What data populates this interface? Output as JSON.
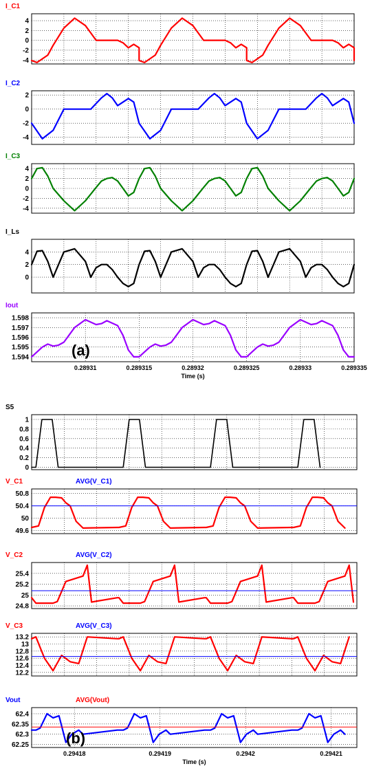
{
  "chart_data": [
    {
      "type": "line",
      "group": "a",
      "series": [
        {
          "name": "I_C1",
          "color": "#ff0000"
        }
      ],
      "ylim": [
        -4.8,
        5.4
      ],
      "yticks": [
        -4,
        -2,
        0,
        2,
        4
      ],
      "xlim": [
        0.289305,
        0.289335
      ],
      "period": 1e-05,
      "x": [
        0.289305,
        0.2893055,
        0.2893065,
        0.289307,
        0.289308,
        0.289309,
        0.28931,
        0.289311,
        0.2893115,
        0.289312,
        0.289313,
        0.2893135,
        0.289314,
        0.2893145,
        0.289315
      ],
      "y": [
        [
          -4.1,
          -4.5,
          -3.0,
          -1.0,
          2.5,
          4.5,
          3.0,
          0.0,
          0.0,
          0.0,
          0.0,
          -0.5,
          -1.5,
          -0.8,
          -1.5
        ]
      ]
    },
    {
      "type": "line",
      "group": "a",
      "series": [
        {
          "name": "I_C2",
          "color": "#0000ff"
        }
      ],
      "ylim": [
        -5.0,
        2.6
      ],
      "yticks": [
        -4,
        -2,
        0,
        2
      ],
      "xlim": [
        0.289305,
        0.289335
      ],
      "period": 1e-05,
      "x": [
        0.289305,
        0.289306,
        0.289307,
        0.289308,
        0.289309,
        0.28931,
        0.2893105,
        0.289311,
        0.2893115,
        0.289312,
        0.2893125,
        0.289313,
        0.289314,
        0.2893145,
        0.289315
      ],
      "y": [
        [
          -2.0,
          -4.2,
          -3.0,
          0.0,
          0.0,
          0.0,
          0.0,
          0.8,
          1.6,
          2.2,
          1.6,
          0.5,
          1.5,
          1.0,
          -2.0
        ]
      ]
    },
    {
      "type": "line",
      "group": "a",
      "series": [
        {
          "name": "I_C3",
          "color": "#008000"
        }
      ],
      "ylim": [
        -5.0,
        5.0
      ],
      "yticks": [
        -4,
        -2,
        0,
        2,
        4
      ],
      "xlim": [
        0.289305,
        0.289335
      ],
      "period": 1e-05,
      "x": [
        0.289305,
        0.2893055,
        0.289306,
        0.2893065,
        0.289307,
        0.289308,
        0.289309,
        0.28931,
        0.289311,
        0.2893115,
        0.289312,
        0.2893125,
        0.289313,
        0.2893135,
        0.289314,
        0.2893145,
        0.289315
      ],
      "y": [
        [
          2.0,
          4.0,
          4.2,
          2.5,
          0.0,
          -2.5,
          -4.5,
          -2.5,
          0.2,
          1.5,
          2.0,
          2.2,
          1.5,
          0.0,
          -1.5,
          -0.8,
          2.0
        ]
      ]
    },
    {
      "type": "line",
      "group": "a",
      "series": [
        {
          "name": "I_Ls",
          "color": "#000000"
        }
      ],
      "ylim": [
        -2.5,
        6.0
      ],
      "yticks": [
        0,
        2,
        4
      ],
      "xlim": [
        0.289305,
        0.289335
      ],
      "period": 1e-05,
      "x": [
        0.289305,
        0.2893055,
        0.289306,
        0.2893065,
        0.289307,
        0.289308,
        0.289309,
        0.28931,
        0.2893105,
        0.289311,
        0.2893115,
        0.289312,
        0.2893125,
        0.289313,
        0.2893135,
        0.289314,
        0.2893145,
        0.289315
      ],
      "y": [
        [
          2.0,
          4.1,
          4.2,
          2.5,
          0.0,
          4.0,
          4.5,
          2.5,
          0.0,
          1.5,
          2.0,
          2.0,
          1.2,
          0.0,
          -1.0,
          -1.5,
          -1.0,
          2.0
        ]
      ]
    },
    {
      "type": "line",
      "group": "a",
      "series": [
        {
          "name": "Iout",
          "color": "#9900ff"
        }
      ],
      "ylim": [
        1.5935,
        1.5985
      ],
      "yticks": [
        1.594,
        1.595,
        1.596,
        1.597,
        1.598
      ],
      "xlim": [
        0.289305,
        0.289335
      ],
      "period": 1e-05,
      "x": [
        0.289305,
        0.289306,
        0.2893065,
        0.289307,
        0.2893075,
        0.289308,
        0.289309,
        0.28931,
        0.289311,
        0.2893115,
        0.289312,
        0.289313,
        0.2893135,
        0.289314,
        0.2893145,
        0.289315
      ],
      "y": [
        [
          1.594,
          1.595,
          1.5953,
          1.5951,
          1.5952,
          1.5955,
          1.597,
          1.5978,
          1.5973,
          1.5974,
          1.5977,
          1.5972,
          1.5962,
          1.5947,
          1.594,
          1.594
        ]
      ],
      "xticks": [
        0.28931,
        0.289315,
        0.28932,
        0.289325,
        0.28933,
        0.289335
      ],
      "xticklabels": [
        "0.28931",
        "0.289315",
        "0.28932",
        "0.289325",
        "0.28933",
        "0.289335"
      ],
      "xlabel": "Time (s)",
      "annotation": "(a)"
    },
    {
      "type": "line",
      "group": "b",
      "series": [
        {
          "name": "S5",
          "color": "#000000"
        }
      ],
      "ylim": [
        -0.05,
        1.1
      ],
      "yticks": [
        0,
        0.2,
        0.4,
        0.6,
        0.8,
        1
      ],
      "yticklabels": [
        "0",
        "0.2",
        "0.4",
        "0.6",
        "0.8",
        "1"
      ],
      "xlim": [
        0.294175,
        0.294213
      ],
      "period": 1.02e-05,
      "x": [
        0.294175,
        0.2941755,
        0.2941762,
        0.2941774,
        0.2941781,
        0.294185
      ],
      "y": [
        [
          0.0,
          0.0,
          1.0,
          1.0,
          0.0,
          0.0
        ]
      ]
    },
    {
      "type": "line",
      "group": "b",
      "series": [
        {
          "name": "V_C1",
          "color": "#ff0000"
        },
        {
          "name": "AVG(V_C1)",
          "color": "#0000ff",
          "constant": 50.4
        }
      ],
      "ylim": [
        49.5,
        50.95
      ],
      "yticks": [
        49.6,
        50,
        50.4,
        50.8
      ],
      "xlim": [
        0.294175,
        0.294213
      ],
      "period": 1.02e-05,
      "x": [
        0.294175,
        0.2941758,
        0.2941765,
        0.2941772,
        0.2941778,
        0.2941785,
        0.294179,
        0.2941795,
        0.2941802,
        0.294181,
        0.294185
      ],
      "y": [
        [
          49.7,
          49.75,
          50.35,
          50.68,
          50.68,
          50.66,
          50.5,
          50.4,
          49.9,
          49.68,
          49.7
        ]
      ]
    },
    {
      "type": "line",
      "group": "b",
      "series": [
        {
          "name": "V_C2",
          "color": "#ff0000"
        },
        {
          "name": "AVG(V_C2)",
          "color": "#0000ff",
          "constant": 25.08
        }
      ],
      "ylim": [
        24.75,
        25.6
      ],
      "yticks": [
        24.8,
        25,
        25.2,
        25.4
      ],
      "xlim": [
        0.294175,
        0.294213
      ],
      "period": 1.02e-05,
      "x": [
        0.294175,
        0.2941755,
        0.2941775,
        0.294178,
        0.294179,
        0.294181,
        0.2941815,
        0.294182,
        0.294185
      ],
      "y": [
        [
          24.95,
          24.85,
          24.85,
          24.88,
          25.25,
          25.35,
          25.55,
          24.87,
          24.95
        ]
      ]
    },
    {
      "type": "line",
      "group": "b",
      "series": [
        {
          "name": "V_C3",
          "color": "#ff0000"
        },
        {
          "name": "AVG(V_C3)",
          "color": "#0000ff",
          "constant": 12.65
        }
      ],
      "ylim": [
        12.1,
        13.3
      ],
      "yticks": [
        12.2,
        12.4,
        12.6,
        12.8,
        13,
        13.2
      ],
      "xlim": [
        0.294175,
        0.294213
      ],
      "period": 1.02e-05,
      "x": [
        0.294175,
        0.2941755,
        0.2941765,
        0.2941775,
        0.2941785,
        0.2941795,
        0.2941805,
        0.2941815,
        0.294185
      ],
      "y": [
        [
          13.15,
          13.2,
          12.6,
          12.25,
          12.68,
          12.5,
          12.45,
          13.2,
          13.15
        ]
      ]
    },
    {
      "type": "line",
      "group": "b",
      "series": [
        {
          "name": "Vout",
          "color": "#0000ff"
        },
        {
          "name": "AVG(Vout)",
          "color": "#ff0000",
          "constant": 62.335
        }
      ],
      "ylim": [
        62.235,
        62.43
      ],
      "yticks": [
        62.25,
        62.3,
        62.35,
        62.4
      ],
      "yticklabels": [
        "62.25",
        "62.3",
        "62.35",
        "62.4"
      ],
      "xlim": [
        0.294175,
        0.294213
      ],
      "period": 1.02e-05,
      "x": [
        0.294175,
        0.2941755,
        0.294176,
        0.2941768,
        0.2941775,
        0.2941782,
        0.294179,
        0.2941797,
        0.2941805,
        0.294181,
        0.294185
      ],
      "y": [
        [
          62.32,
          62.32,
          62.33,
          62.4,
          62.38,
          62.39,
          62.26,
          62.3,
          62.32,
          62.3,
          62.32
        ]
      ],
      "xticks": [
        0.29418,
        0.29419,
        0.2942,
        0.29421
      ],
      "xticklabels": [
        "0.29418",
        "0.29419",
        "0.2942",
        "0.29421"
      ],
      "xlabel": "Time (s)",
      "annotation": "(b)"
    }
  ]
}
